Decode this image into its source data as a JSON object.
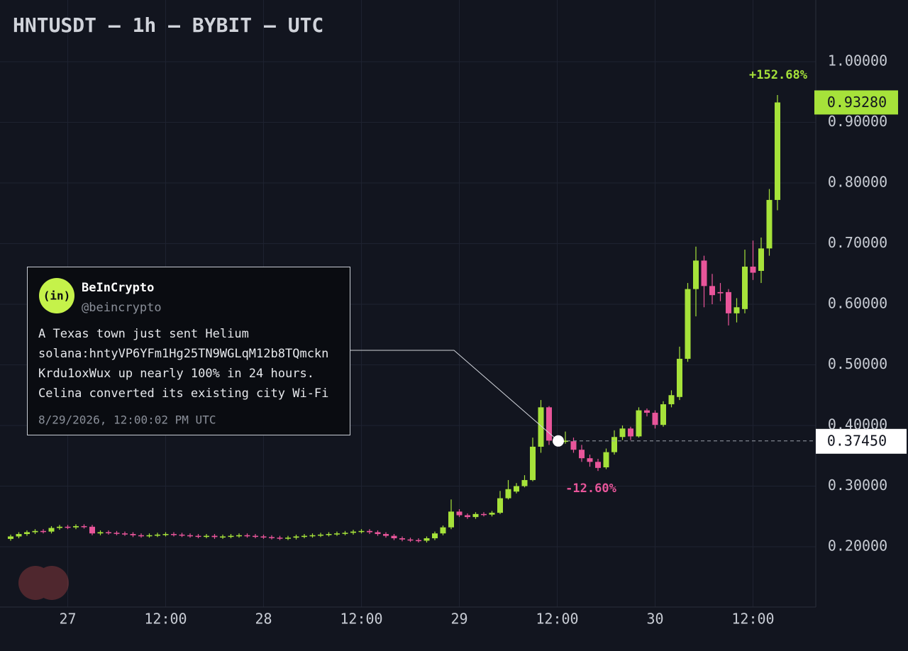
{
  "chart_data": {
    "type": "candlestick",
    "title": "HNTUSDT — 1h — BYBIT — UTC",
    "categories": [
      null,
      null,
      null,
      null,
      null,
      null,
      null,
      "27",
      null,
      null,
      null,
      null,
      null,
      null,
      null,
      null,
      null,
      null,
      null,
      "12:00",
      null,
      null,
      null,
      null,
      null,
      null,
      null,
      null,
      null,
      null,
      null,
      "28",
      null,
      null,
      null,
      null,
      null,
      null,
      null,
      null,
      null,
      null,
      null,
      "12:00",
      null,
      null,
      null,
      null,
      null,
      null,
      null,
      null,
      null,
      null,
      null,
      "29",
      null,
      null,
      null,
      null,
      null,
      null,
      null,
      null,
      null,
      null,
      null,
      "12:00",
      null,
      null,
      null,
      null,
      null,
      null,
      null,
      null,
      null,
      null,
      null,
      "30",
      null,
      null,
      null,
      null,
      null,
      null,
      null,
      null,
      null,
      null,
      null,
      "12:00",
      null,
      null,
      null
    ],
    "open": [
      0.213,
      0.217,
      0.221,
      0.224,
      0.226,
      0.225,
      0.231,
      0.233,
      0.232,
      0.234,
      0.233,
      0.222,
      0.224,
      0.223,
      0.222,
      0.221,
      0.219,
      0.218,
      0.219,
      0.22,
      0.221,
      0.22,
      0.219,
      0.218,
      0.217,
      0.218,
      0.216,
      0.217,
      0.218,
      0.219,
      0.218,
      0.217,
      0.216,
      0.215,
      0.214,
      0.215,
      0.217,
      0.218,
      0.219,
      0.22,
      0.221,
      0.222,
      0.223,
      0.225,
      0.226,
      0.224,
      0.221,
      0.218,
      0.214,
      0.212,
      0.211,
      0.21,
      0.214,
      0.222,
      0.232,
      0.258,
      0.252,
      0.249,
      0.254,
      0.253,
      0.256,
      0.28,
      0.291,
      0.3,
      0.31,
      0.365,
      0.43,
      0.376,
      0.373,
      0.374,
      0.36,
      0.346,
      0.34,
      0.331,
      0.356,
      0.381,
      0.395,
      0.382,
      0.425,
      0.421,
      0.401,
      0.435,
      0.447,
      0.51,
      0.625,
      0.672,
      0.63,
      0.62,
      0.62,
      0.585,
      0.592,
      0.662,
      0.655,
      0.692,
      0.772
    ],
    "high": [
      0.22,
      0.224,
      0.227,
      0.229,
      0.229,
      0.234,
      0.236,
      0.236,
      0.237,
      0.237,
      0.236,
      0.227,
      0.227,
      0.226,
      0.225,
      0.224,
      0.222,
      0.222,
      0.223,
      0.224,
      0.224,
      0.223,
      0.222,
      0.221,
      0.221,
      0.221,
      0.22,
      0.221,
      0.222,
      0.222,
      0.221,
      0.22,
      0.219,
      0.218,
      0.218,
      0.22,
      0.221,
      0.222,
      0.223,
      0.224,
      0.225,
      0.226,
      0.228,
      0.229,
      0.229,
      0.227,
      0.224,
      0.221,
      0.217,
      0.215,
      0.214,
      0.217,
      0.225,
      0.235,
      0.278,
      0.262,
      0.255,
      0.257,
      0.257,
      0.259,
      0.292,
      0.31,
      0.305,
      0.318,
      0.38,
      0.442,
      0.432,
      0.38,
      0.39,
      0.38,
      0.368,
      0.352,
      0.345,
      0.362,
      0.392,
      0.4,
      0.398,
      0.43,
      0.428,
      0.425,
      0.44,
      0.458,
      0.53,
      0.635,
      0.695,
      0.68,
      0.65,
      0.635,
      0.625,
      0.61,
      0.69,
      0.705,
      0.71,
      0.79,
      0.945
    ],
    "low": [
      0.21,
      0.214,
      0.218,
      0.221,
      0.222,
      0.222,
      0.228,
      0.229,
      0.229,
      0.23,
      0.219,
      0.219,
      0.22,
      0.219,
      0.218,
      0.216,
      0.215,
      0.215,
      0.216,
      0.217,
      0.217,
      0.216,
      0.215,
      0.214,
      0.214,
      0.213,
      0.213,
      0.214,
      0.215,
      0.215,
      0.214,
      0.213,
      0.212,
      0.211,
      0.211,
      0.212,
      0.214,
      0.215,
      0.216,
      0.217,
      0.218,
      0.219,
      0.22,
      0.222,
      0.221,
      0.218,
      0.215,
      0.211,
      0.209,
      0.208,
      0.207,
      0.207,
      0.211,
      0.219,
      0.229,
      0.249,
      0.246,
      0.246,
      0.25,
      0.25,
      0.254,
      0.278,
      0.288,
      0.298,
      0.308,
      0.355,
      0.368,
      0.368,
      0.37,
      0.355,
      0.34,
      0.332,
      0.325,
      0.328,
      0.352,
      0.376,
      0.376,
      0.38,
      0.415,
      0.395,
      0.398,
      0.43,
      0.442,
      0.505,
      0.58,
      0.595,
      0.6,
      0.605,
      0.565,
      0.57,
      0.585,
      0.64,
      0.635,
      0.68,
      0.755
    ],
    "close": [
      0.217,
      0.221,
      0.224,
      0.226,
      0.225,
      0.231,
      0.233,
      0.232,
      0.234,
      0.233,
      0.222,
      0.224,
      0.223,
      0.222,
      0.221,
      0.219,
      0.218,
      0.219,
      0.22,
      0.221,
      0.22,
      0.219,
      0.218,
      0.217,
      0.218,
      0.216,
      0.217,
      0.218,
      0.219,
      0.218,
      0.217,
      0.216,
      0.215,
      0.214,
      0.215,
      0.217,
      0.218,
      0.219,
      0.22,
      0.221,
      0.222,
      0.223,
      0.225,
      0.226,
      0.224,
      0.221,
      0.218,
      0.214,
      0.212,
      0.211,
      0.21,
      0.214,
      0.222,
      0.232,
      0.258,
      0.252,
      0.249,
      0.254,
      0.253,
      0.256,
      0.28,
      0.295,
      0.3,
      0.31,
      0.365,
      0.43,
      0.375,
      0.373,
      0.375,
      0.36,
      0.346,
      0.34,
      0.33,
      0.356,
      0.381,
      0.395,
      0.382,
      0.425,
      0.421,
      0.401,
      0.435,
      0.45,
      0.51,
      0.625,
      0.672,
      0.63,
      0.615,
      0.618,
      0.585,
      0.595,
      0.662,
      0.652,
      0.692,
      0.772,
      0.9328
    ],
    "up_color": "#a6e23a",
    "down_color": "#e8559a",
    "ylim": [
      0.1,
      1.1
    ],
    "yticks": [
      {
        "value": 0.2,
        "label": "0.20000"
      },
      {
        "value": 0.3,
        "label": "0.30000"
      },
      {
        "value": 0.4,
        "label": "0.40000"
      },
      {
        "value": 0.5,
        "label": "0.50000"
      },
      {
        "value": 0.6,
        "label": "0.60000"
      },
      {
        "value": 0.7,
        "label": "0.70000"
      },
      {
        "value": 0.8,
        "label": "0.80000"
      },
      {
        "value": 0.9,
        "label": "0.90000"
      },
      {
        "value": 1.0,
        "label": "1.00000"
      }
    ],
    "grid": true,
    "price_lines": [
      {
        "value": 0.9328,
        "label": "0.93280",
        "color": "#a6e23a"
      },
      {
        "value": 0.3745,
        "label": "0.37450",
        "color": "#ffffff"
      }
    ],
    "annotations": [
      "+152.68%",
      "-12.60%"
    ],
    "tweet": {
      "logo": "(in)",
      "name": "BeInCrypto",
      "handle": "@beincrypto",
      "text": [
        "A Texas town just sent Helium",
        "solana:hntyVP6YFm1Hg25TN9WGLqM12b8TQmckn",
        "Krdu1oxWux up nearly 100% in 24 hours.",
        "Celina converted its existing city Wi-Fi"
      ],
      "timestamp": "8/29/2026, 12:00:02 PM UTC"
    }
  }
}
